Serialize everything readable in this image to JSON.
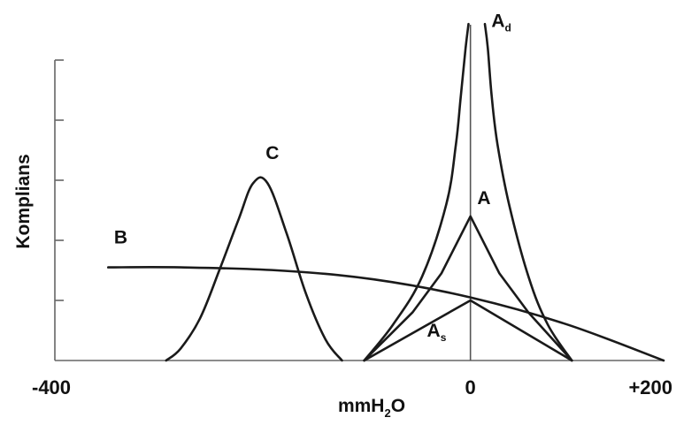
{
  "chart_data": {
    "type": "line",
    "xlabel": "mmH",
    "xlabel_sub": "2",
    "xlabel_tail": "O",
    "ylabel": "Komplians",
    "xlim": [
      -400,
      200
    ],
    "ylim": [
      0,
      5
    ],
    "xtick_labels": [
      {
        "value": -400,
        "label": "-400"
      },
      {
        "value": 0,
        "label": "0"
      },
      {
        "value": 200,
        "label": "+200"
      }
    ],
    "yticks": [
      0,
      1,
      2,
      3,
      4,
      5
    ],
    "grid": false,
    "legend": "none",
    "series": [
      {
        "name": "B",
        "label_main": "B",
        "label_sub": "",
        "label_at": [
          -362,
          1.95
        ],
        "x": [
          -375,
          -300,
          -200,
          -100,
          0,
          100,
          200
        ],
        "y": [
          1.55,
          1.55,
          1.5,
          1.35,
          1.05,
          0.6,
          0.0
        ]
      },
      {
        "name": "C",
        "label_main": "C",
        "label_sub": "",
        "label_at": [
          -205,
          3.35
        ],
        "x": [
          -315,
          -300,
          -280,
          -260,
          -240,
          -225,
          -210,
          -190,
          -170,
          -150,
          -133
        ],
        "y": [
          0.0,
          0.2,
          0.7,
          1.5,
          2.35,
          2.95,
          2.95,
          2.1,
          1.1,
          0.35,
          0.0
        ]
      },
      {
        "name": "A",
        "label_main": "A",
        "label_sub": "",
        "label_at": [
          14,
          2.6
        ],
        "x": [
          -110,
          -60,
          -30,
          0,
          30,
          60,
          105
        ],
        "y": [
          0.0,
          0.8,
          1.45,
          2.4,
          1.45,
          0.8,
          0.0
        ]
      },
      {
        "name": "As",
        "label_main": "A",
        "label_sub": "s",
        "label_at": [
          -35,
          0.4
        ],
        "x": [
          -110,
          0,
          105
        ],
        "y": [
          0.0,
          1.0,
          0.0
        ]
      },
      {
        "name": "Ad",
        "label_main": "A",
        "label_sub": "d",
        "label_at": [
          32,
          5.55
        ],
        "x": [
          -110,
          -80,
          -50,
          -25,
          -15,
          -10,
          -5,
          -2,
          15,
          18,
          22,
          28,
          40,
          60,
          80,
          105
        ],
        "y": [
          0.0,
          0.6,
          1.4,
          2.6,
          3.6,
          4.4,
          5.2,
          5.6,
          5.6,
          5.2,
          4.4,
          3.6,
          2.6,
          1.4,
          0.6,
          0.0
        ]
      }
    ]
  }
}
